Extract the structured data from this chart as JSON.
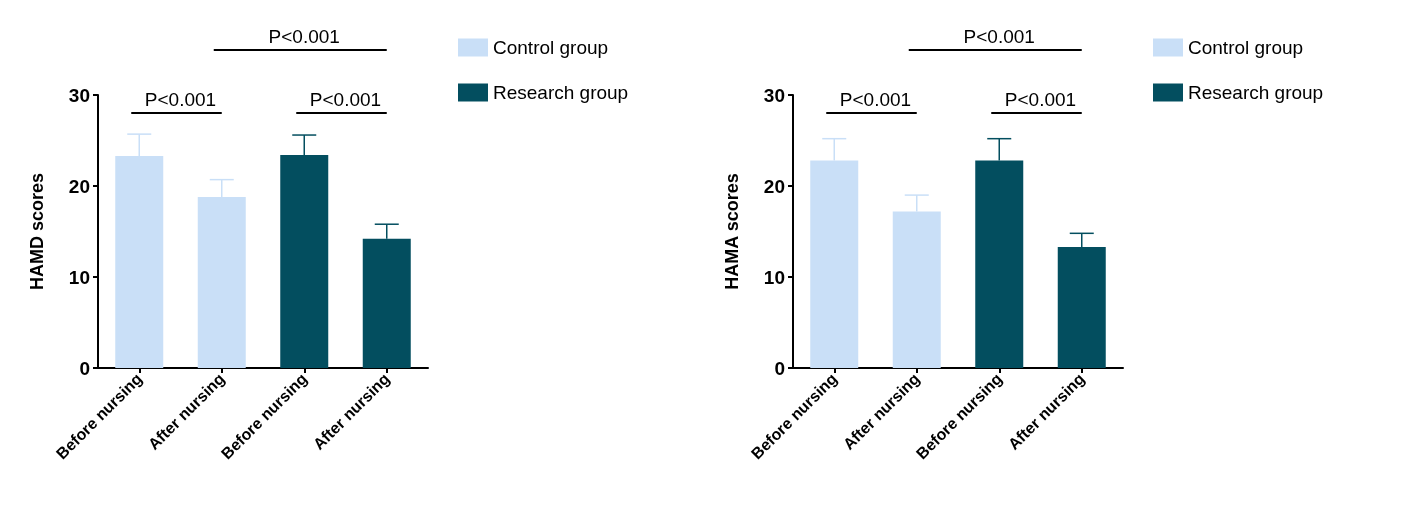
{
  "chart_data": [
    {
      "type": "bar",
      "ylabel": "HAMD scores",
      "categories": [
        "Before nursing",
        "After nursing",
        "Before nursing",
        "After nursing"
      ],
      "stacked": true,
      "series": [
        {
          "name": "Control group",
          "color": "#c9dff7",
          "values": [
            23.3,
            18.8,
            null,
            null
          ],
          "errors": [
            [
              23.3,
              25.7
            ],
            [
              18.8,
              20.7
            ],
            null,
            null
          ]
        },
        {
          "name": "Research group",
          "color": "#034e5f",
          "values": [
            null,
            null,
            23.4,
            14.2
          ],
          "errors": [
            null,
            null,
            [
              23.4,
              25.6
            ],
            [
              14.2,
              15.8
            ]
          ]
        }
      ],
      "ylim": [
        0,
        30
      ],
      "yticks": [
        0,
        10,
        20,
        30
      ],
      "grid": false,
      "legend": "top right",
      "annotations": [
        "P<0.001",
        "P<0.001",
        "P<0.001"
      ]
    },
    {
      "type": "bar",
      "ylabel": "HAMA scores",
      "categories": [
        "Before nursing",
        "After nursing",
        "Before nursing",
        "After nursing"
      ],
      "stacked": true,
      "series": [
        {
          "name": "Control group",
          "color": "#c9dff7",
          "values": [
            22.8,
            17.2,
            null,
            null
          ],
          "errors": [
            [
              22.8,
              25.2
            ],
            [
              17.2,
              19.0
            ],
            null,
            null
          ]
        },
        {
          "name": "Research group",
          "color": "#034e5f",
          "values": [
            null,
            null,
            22.8,
            13.3
          ],
          "errors": [
            null,
            null,
            [
              22.8,
              25.2
            ],
            [
              13.3,
              14.8
            ]
          ]
        }
      ],
      "ylim": [
        0,
        30
      ],
      "yticks": [
        0,
        10,
        20,
        30
      ],
      "grid": false,
      "legend": "top right",
      "annotations": [
        "P<0.001",
        "P<0.001",
        "P<0.001"
      ]
    }
  ]
}
